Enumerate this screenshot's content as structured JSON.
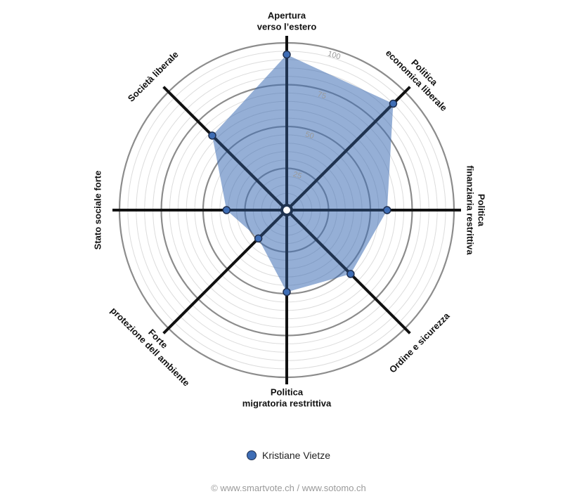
{
  "chart_data": {
    "type": "radar",
    "axes": [
      [
        "Apertura",
        "verso l’estero"
      ],
      [
        "Politica",
        "economica liberale"
      ],
      [
        "Politica",
        "finanziaria restrittiva"
      ],
      [
        "Ordine e sicurezza"
      ],
      [
        "Politica",
        "migratoria restrittiva"
      ],
      [
        "Forte",
        "protezione dell ambiente"
      ],
      [
        "Stato sociale forte"
      ],
      [
        "Società liberale"
      ]
    ],
    "series": [
      {
        "name": "Kristiane Vietze",
        "values": [
          93,
          90,
          60,
          54,
          49,
          24,
          36,
          63
        ],
        "color": "#3e6db5"
      }
    ],
    "rlim": [
      0,
      100
    ],
    "tick_labels": [
      "25",
      "50",
      "75",
      "100"
    ],
    "legend_position": "bottom"
  },
  "footer": {
    "credit": "© www.smartvote.ch / www.sotomo.ch"
  }
}
